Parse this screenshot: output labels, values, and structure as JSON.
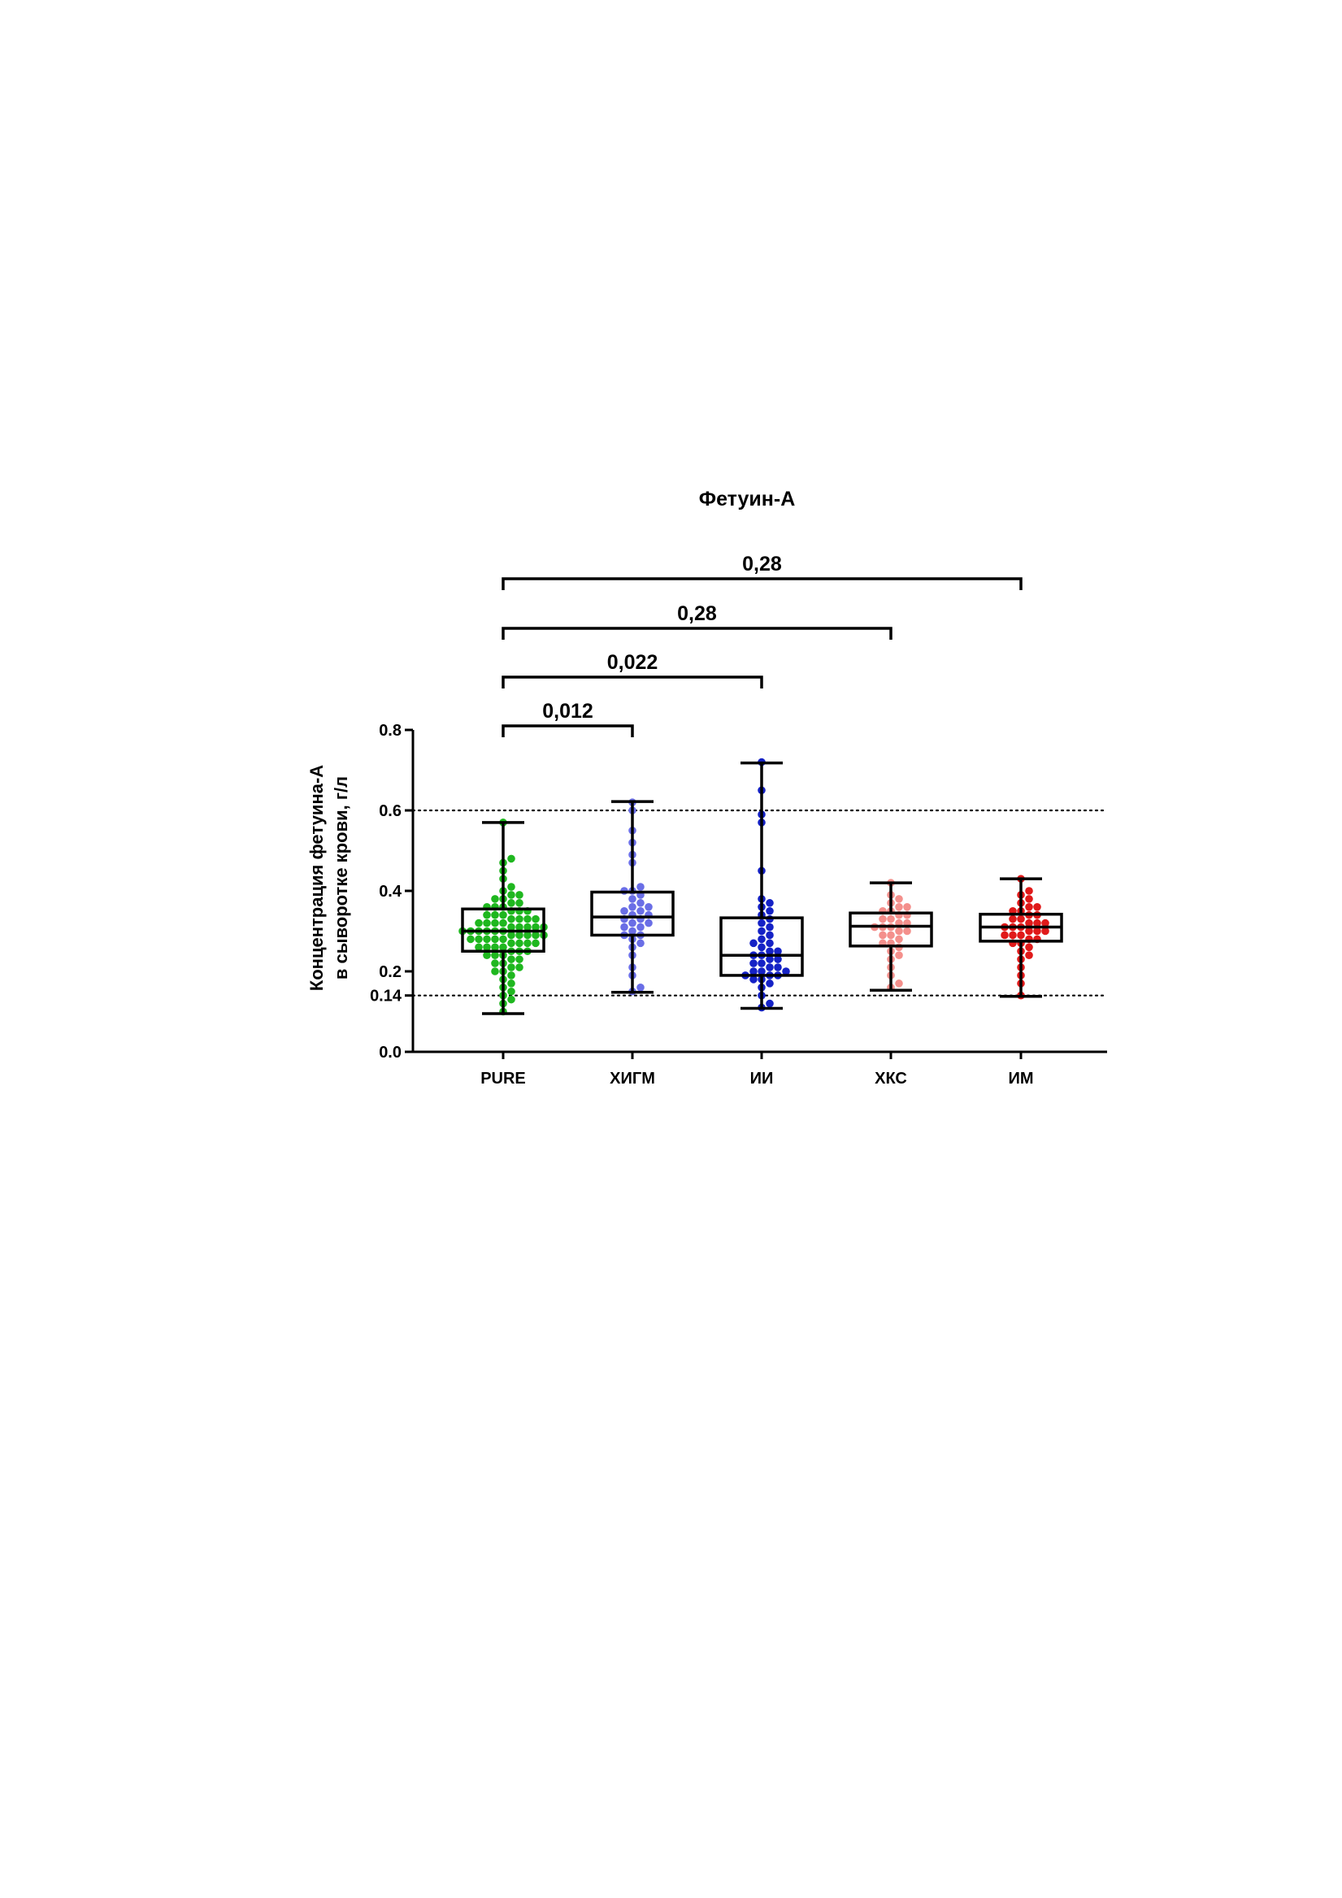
{
  "chart_data": {
    "type": "box",
    "title": "Фетуин-А",
    "ylabel_line1": "Концентрация фетуина-А",
    "ylabel_line2": "в сыворотке крови, г/л",
    "xlabel": "",
    "ylim": [
      0,
      0.8
    ],
    "yticks": [
      "0.0",
      "0.14",
      "0.2",
      "0.4",
      "0.6",
      "0.8"
    ],
    "ytick_values": [
      0.0,
      0.14,
      0.2,
      0.4,
      0.6,
      0.8
    ],
    "reference_lines": [
      0.14,
      0.6
    ],
    "grid": false,
    "categories": [
      "PURE",
      "ХИГМ",
      "ИИ",
      "ХКС",
      "ИМ"
    ],
    "colors": [
      "#1fb71f",
      "#6a6ee6",
      "#1522c6",
      "#f4908c",
      "#e01a1a"
    ],
    "boxes": [
      {
        "min": 0.095,
        "q1": 0.25,
        "median": 0.3,
        "q3": 0.355,
        "max": 0.57
      },
      {
        "min": 0.148,
        "q1": 0.29,
        "median": 0.335,
        "q3": 0.397,
        "max": 0.622
      },
      {
        "min": 0.108,
        "q1": 0.19,
        "median": 0.24,
        "q3": 0.333,
        "max": 0.718
      },
      {
        "min": 0.153,
        "q1": 0.263,
        "median": 0.312,
        "q3": 0.345,
        "max": 0.42
      },
      {
        "min": 0.138,
        "q1": 0.275,
        "median": 0.31,
        "q3": 0.342,
        "max": 0.43
      }
    ],
    "points": [
      [
        0.1,
        0.12,
        0.13,
        0.14,
        0.15,
        0.16,
        0.17,
        0.18,
        0.19,
        0.2,
        0.2,
        0.21,
        0.21,
        0.22,
        0.22,
        0.23,
        0.23,
        0.24,
        0.24,
        0.24,
        0.25,
        0.25,
        0.25,
        0.26,
        0.26,
        0.26,
        0.26,
        0.27,
        0.27,
        0.27,
        0.27,
        0.28,
        0.28,
        0.28,
        0.28,
        0.28,
        0.29,
        0.29,
        0.29,
        0.29,
        0.29,
        0.3,
        0.3,
        0.3,
        0.3,
        0.3,
        0.3,
        0.31,
        0.31,
        0.31,
        0.31,
        0.31,
        0.32,
        0.32,
        0.32,
        0.32,
        0.33,
        0.33,
        0.33,
        0.33,
        0.34,
        0.34,
        0.34,
        0.35,
        0.35,
        0.35,
        0.36,
        0.36,
        0.36,
        0.37,
        0.37,
        0.38,
        0.38,
        0.39,
        0.39,
        0.4,
        0.41,
        0.43,
        0.45,
        0.47,
        0.48,
        0.57
      ],
      [
        0.15,
        0.16,
        0.19,
        0.21,
        0.24,
        0.26,
        0.27,
        0.28,
        0.29,
        0.29,
        0.3,
        0.31,
        0.31,
        0.32,
        0.32,
        0.33,
        0.33,
        0.34,
        0.34,
        0.35,
        0.35,
        0.36,
        0.36,
        0.37,
        0.38,
        0.39,
        0.4,
        0.4,
        0.41,
        0.47,
        0.49,
        0.52,
        0.55,
        0.6,
        0.62
      ],
      [
        0.11,
        0.12,
        0.14,
        0.16,
        0.17,
        0.18,
        0.18,
        0.19,
        0.19,
        0.19,
        0.2,
        0.2,
        0.2,
        0.21,
        0.21,
        0.22,
        0.22,
        0.23,
        0.23,
        0.24,
        0.24,
        0.25,
        0.25,
        0.26,
        0.27,
        0.27,
        0.28,
        0.29,
        0.3,
        0.31,
        0.32,
        0.33,
        0.34,
        0.35,
        0.36,
        0.37,
        0.38,
        0.45,
        0.57,
        0.59,
        0.65,
        0.72
      ],
      [
        0.16,
        0.17,
        0.19,
        0.21,
        0.23,
        0.24,
        0.25,
        0.26,
        0.27,
        0.27,
        0.28,
        0.29,
        0.29,
        0.3,
        0.3,
        0.31,
        0.31,
        0.31,
        0.32,
        0.32,
        0.33,
        0.33,
        0.34,
        0.34,
        0.35,
        0.35,
        0.36,
        0.36,
        0.37,
        0.38,
        0.39,
        0.42
      ],
      [
        0.14,
        0.17,
        0.19,
        0.21,
        0.23,
        0.24,
        0.25,
        0.26,
        0.27,
        0.27,
        0.28,
        0.28,
        0.29,
        0.29,
        0.29,
        0.3,
        0.3,
        0.3,
        0.31,
        0.31,
        0.31,
        0.32,
        0.32,
        0.32,
        0.33,
        0.33,
        0.34,
        0.34,
        0.35,
        0.35,
        0.36,
        0.36,
        0.37,
        0.38,
        0.39,
        0.4,
        0.43
      ]
    ],
    "comparisons": [
      {
        "from": 0,
        "to": 4,
        "label": "0,28",
        "level": 4
      },
      {
        "from": 0,
        "to": 3,
        "label": "0,28",
        "level": 3
      },
      {
        "from": 0,
        "to": 2,
        "label": "0,022",
        "level": 2
      },
      {
        "from": 0,
        "to": 1,
        "label": "0,012",
        "level": 1
      }
    ]
  }
}
